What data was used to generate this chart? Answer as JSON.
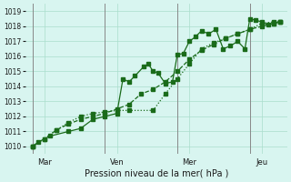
{
  "title": "",
  "xlabel": "Pression niveau de la mer( hPa )",
  "ylabel": "",
  "bg_color": "#d8f5f0",
  "grid_color": "#aaddcc",
  "line_color": "#1a6b1a",
  "ylim": [
    1009.5,
    1019.5
  ],
  "yticks": [
    1010,
    1011,
    1012,
    1013,
    1014,
    1015,
    1016,
    1017,
    1018,
    1019
  ],
  "day_labels": [
    "Mar",
    "Ven",
    "Mer",
    "Jeu"
  ],
  "day_positions": [
    0.5,
    3.5,
    6.5,
    9.5
  ],
  "day_vlines": [
    0,
    3,
    6,
    9
  ],
  "line1_x": [
    0,
    0.25,
    0.75,
    1.5,
    2.0,
    2.5,
    3.0,
    3.5,
    3.75,
    4.0,
    4.25,
    4.6,
    4.8,
    5.0,
    5.2,
    5.5,
    5.8,
    6.0,
    6.25,
    6.5,
    6.75,
    7.0,
    7.3,
    7.6,
    7.9,
    8.2,
    8.5,
    8.8,
    9.0,
    9.25,
    9.5,
    9.75,
    10.0,
    10.25
  ],
  "line1_y": [
    1010.0,
    1010.3,
    1010.7,
    1011.0,
    1011.2,
    1011.8,
    1012.0,
    1012.2,
    1014.5,
    1014.3,
    1014.7,
    1015.3,
    1015.5,
    1015.0,
    1014.9,
    1014.2,
    1014.3,
    1016.1,
    1016.2,
    1017.0,
    1017.3,
    1017.7,
    1017.5,
    1017.8,
    1016.5,
    1016.7,
    1017.0,
    1016.5,
    1018.5,
    1018.4,
    1018.3,
    1018.1,
    1018.2,
    1018.3
  ],
  "line2_x": [
    0,
    0.5,
    1.0,
    1.5,
    2.0,
    2.5,
    3.0,
    3.5,
    4.0,
    4.5,
    5.0,
    5.5,
    6.0,
    6.5,
    7.0,
    7.5,
    8.0,
    8.5,
    9.0,
    9.5,
    10.0,
    10.25
  ],
  "line2_y": [
    1010.0,
    1010.5,
    1011.1,
    1011.5,
    1011.8,
    1012.0,
    1012.2,
    1012.5,
    1012.8,
    1013.5,
    1013.8,
    1014.3,
    1015.0,
    1015.8,
    1016.4,
    1016.8,
    1017.2,
    1017.5,
    1017.8,
    1018.0,
    1018.2,
    1018.3
  ],
  "line3_x": [
    0,
    0.5,
    1.0,
    1.5,
    2.0,
    2.5,
    3.0,
    3.5,
    4.0,
    5.0,
    5.5,
    6.0,
    6.5,
    7.0,
    7.5,
    8.0,
    8.5,
    9.0,
    9.5,
    10.0,
    10.25
  ],
  "line3_y": [
    1010.0,
    1010.5,
    1011.1,
    1011.6,
    1012.0,
    1012.2,
    1012.3,
    1012.4,
    1012.4,
    1012.4,
    1013.5,
    1014.5,
    1015.5,
    1016.5,
    1016.9,
    1017.2,
    1017.5,
    1017.8,
    1018.2,
    1018.3,
    1018.3
  ]
}
